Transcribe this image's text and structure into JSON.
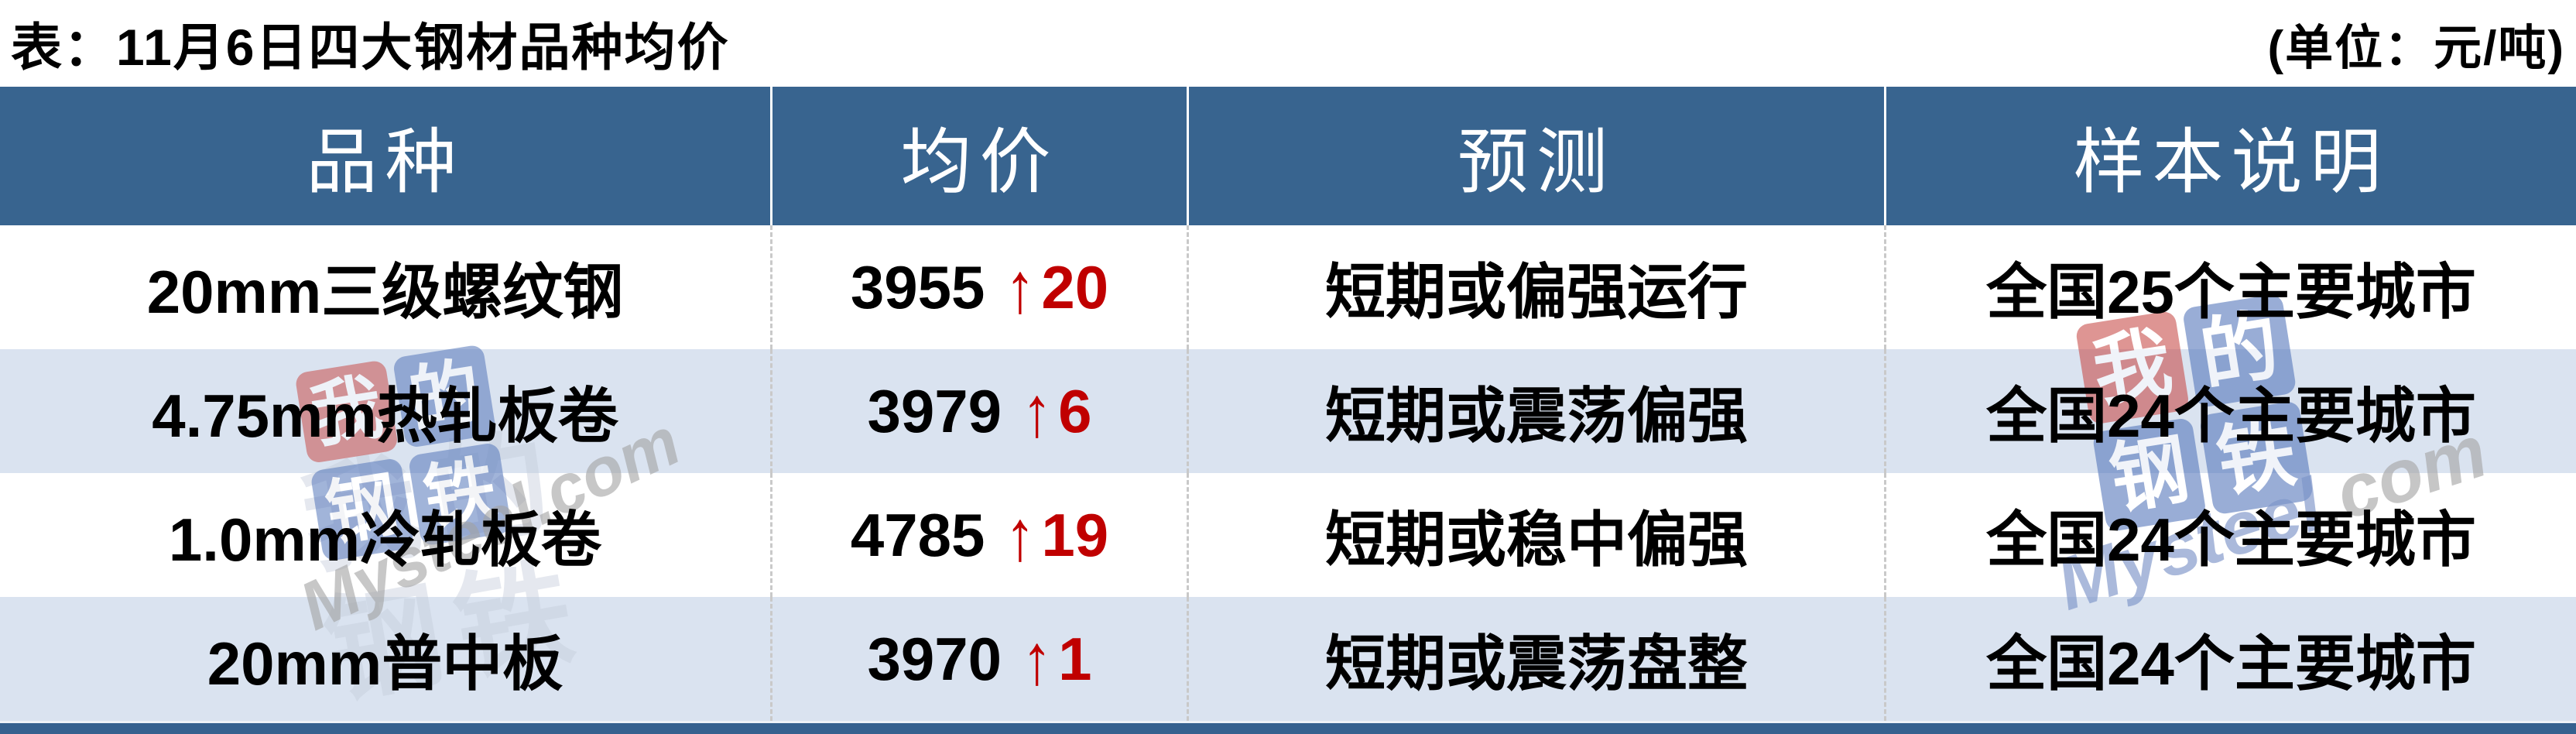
{
  "title": "表：11月6日四大钢材品种均价",
  "unit_label": "(单位：元/吨)",
  "table": {
    "columns": [
      "品种",
      "均价",
      "预测",
      "样本说明"
    ],
    "rows": [
      {
        "variety": "20mm三级螺纹钢",
        "price": "3955",
        "arrow": "↑",
        "change": "20",
        "forecast": "短期或偏强运行",
        "sample": "全国25个主要城市"
      },
      {
        "variety": "4.75mm热轧板卷",
        "price": "3979",
        "arrow": "↑",
        "change": "6",
        "forecast": "短期或震荡偏强",
        "sample": "全国24个主要城市"
      },
      {
        "variety": "1.0mm冷轧板卷",
        "price": "4785",
        "arrow": "↑",
        "change": "19",
        "forecast": "短期或稳中偏强",
        "sample": "全国24个主要城市"
      },
      {
        "variety": "20mm普中板",
        "price": "3970",
        "arrow": "↑",
        "change": "1",
        "forecast": "短期或震荡盘整",
        "sample": "全国24个主要城市"
      }
    ]
  },
  "chart_data": {
    "type": "table",
    "title": "表：11月6日四大钢材品种均价",
    "unit": "元/吨",
    "columns": [
      "品种",
      "均价",
      "预测",
      "样本说明"
    ],
    "rows": [
      [
        "20mm三级螺纹钢",
        "3955 ↑20",
        "短期或偏强运行",
        "全国25个主要城市"
      ],
      [
        "4.75mm热轧板卷",
        "3979 ↑6",
        "短期或震荡偏强",
        "全国24个主要城市"
      ],
      [
        "1.0mm冷轧板卷",
        "4785 ↑19",
        "短期或稳中偏强",
        "全国24个主要城市"
      ],
      [
        "20mm普中板",
        "3970 ↑1",
        "短期或震荡盘整",
        "全国24个主要城市"
      ]
    ],
    "avg_prices": [
      3955,
      3979,
      4785,
      3970
    ],
    "price_changes": [
      20,
      6,
      19,
      1
    ]
  },
  "watermark": {
    "logo_chars": [
      "我",
      "的",
      "钢",
      "铁"
    ],
    "site_text": "Mysteel.com",
    "site_text_blue": "Mysteel",
    "site_text_gray": ".com"
  },
  "colors": {
    "header_bg": "#38648f",
    "row_alt_bg": "#dae3f0",
    "bottom_bar": "#36618f",
    "up_red": "#c00000",
    "header_text": "#ffffff",
    "body_text": "#000000"
  }
}
